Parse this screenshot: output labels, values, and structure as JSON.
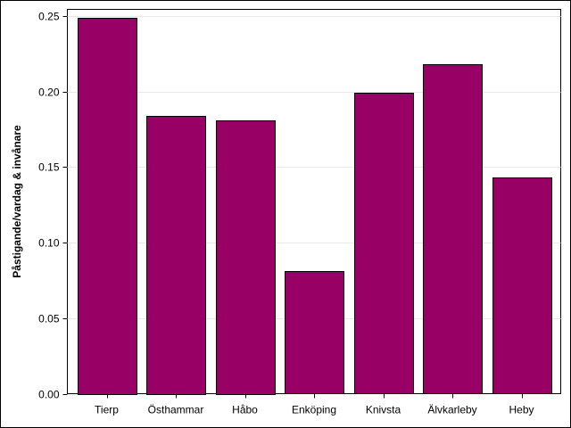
{
  "chart_data": {
    "type": "bar",
    "title": "",
    "xlabel": "",
    "ylabel": "Påstigande/vardag & invånare",
    "categories": [
      "Tierp",
      "Östhammar",
      "Håbo",
      "Enköping",
      "Knivsta",
      "Älvkarleby",
      "Heby"
    ],
    "values": [
      0.249,
      0.184,
      0.181,
      0.081,
      0.199,
      0.218,
      0.143
    ],
    "ylim": [
      0,
      0.25
    ],
    "yticks": [
      0.0,
      0.05,
      0.1,
      0.15,
      0.2,
      0.25
    ],
    "ytick_labels": [
      "0.00",
      "0.05",
      "0.10",
      "0.15",
      "0.20",
      "0.25"
    ],
    "grid": true,
    "bar_color": "#990066"
  }
}
